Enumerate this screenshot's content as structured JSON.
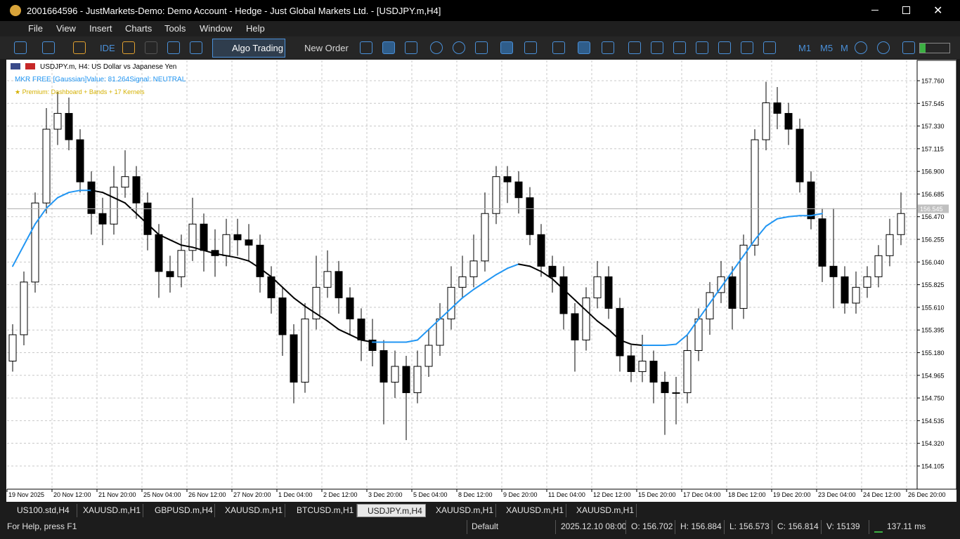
{
  "window": {
    "title": "2001664596 - JustMarkets-Demo: Demo Account - Hedge - Just Global Markets Ltd. - [USDJPY.m,H4]"
  },
  "menu": [
    "File",
    "View",
    "Insert",
    "Charts",
    "Tools",
    "Window",
    "Help"
  ],
  "toolbar": {
    "ide": "IDE",
    "algo_trading": "Algo Trading",
    "new_order": "New Order",
    "timeframes": [
      "M1",
      "M5",
      "M"
    ]
  },
  "chart_data": {
    "type": "candlestick",
    "symbol_label": "USDJPY.m, H4:  US Dollar vs Japanese Yen",
    "indicator_label": "MKR FREE [Gaussian]Value: 81.264Signal: NEUTRAL",
    "premium_label": "★ Premium: Dashboard + Bands + 17 Kernels",
    "x_labels": [
      "19 Nov 2025",
      "20 Nov 12:00",
      "21 Nov 20:00",
      "25 Nov 04:00",
      "26 Nov 12:00",
      "27 Nov 20:00",
      "1 Dec 04:00",
      "2 Dec 12:00",
      "3 Dec 20:00",
      "5 Dec 04:00",
      "8 Dec 12:00",
      "9 Dec 20:00",
      "11 Dec 04:00",
      "12 Dec 12:00",
      "15 Dec 20:00",
      "17 Dec 04:00",
      "18 Dec 12:00",
      "19 Dec 20:00",
      "23 Dec 04:00",
      "24 Dec 12:00",
      "26 Dec 20:00"
    ],
    "candles": [
      [
        155.1,
        155.45,
        155.0,
        155.35
      ],
      [
        155.35,
        155.95,
        155.25,
        155.85
      ],
      [
        155.85,
        156.7,
        155.75,
        156.6
      ],
      [
        156.6,
        157.5,
        156.5,
        157.3
      ],
      [
        157.3,
        157.65,
        157.15,
        157.45
      ],
      [
        157.45,
        157.6,
        157.1,
        157.2
      ],
      [
        157.2,
        157.3,
        156.7,
        156.8
      ],
      [
        156.8,
        156.9,
        156.3,
        156.5
      ],
      [
        156.5,
        156.65,
        156.2,
        156.4
      ],
      [
        156.4,
        156.95,
        156.3,
        156.75
      ],
      [
        156.75,
        157.1,
        156.65,
        156.85
      ],
      [
        156.85,
        156.95,
        156.45,
        156.6
      ],
      [
        156.6,
        156.7,
        156.15,
        156.3
      ],
      [
        156.3,
        156.4,
        155.7,
        155.95
      ],
      [
        155.95,
        156.1,
        155.75,
        155.9
      ],
      [
        155.9,
        156.3,
        155.8,
        156.15
      ],
      [
        156.15,
        156.65,
        156.05,
        156.4
      ],
      [
        156.4,
        156.5,
        155.95,
        156.15
      ],
      [
        156.15,
        156.35,
        155.9,
        156.1
      ],
      [
        156.1,
        156.45,
        156.0,
        156.3
      ],
      [
        156.3,
        156.45,
        156.1,
        156.25
      ],
      [
        156.25,
        156.4,
        156.05,
        156.2
      ],
      [
        156.2,
        156.3,
        155.75,
        155.9
      ],
      [
        155.9,
        156.0,
        155.55,
        155.7
      ],
      [
        155.7,
        155.8,
        155.15,
        155.35
      ],
      [
        155.35,
        155.45,
        154.7,
        154.9
      ],
      [
        154.9,
        155.65,
        154.8,
        155.5
      ],
      [
        155.5,
        156.1,
        155.4,
        155.8
      ],
      [
        155.8,
        156.15,
        155.7,
        155.95
      ],
      [
        155.95,
        156.05,
        155.55,
        155.7
      ],
      [
        155.7,
        155.8,
        155.35,
        155.5
      ],
      [
        155.5,
        155.6,
        155.1,
        155.3
      ],
      [
        155.3,
        155.5,
        155.05,
        155.2
      ],
      [
        155.2,
        155.3,
        154.5,
        154.9
      ],
      [
        154.9,
        155.2,
        154.75,
        155.05
      ],
      [
        155.05,
        155.15,
        154.35,
        154.8
      ],
      [
        154.8,
        155.2,
        154.7,
        155.05
      ],
      [
        155.05,
        155.4,
        154.95,
        155.25
      ],
      [
        155.25,
        155.65,
        155.15,
        155.5
      ],
      [
        155.5,
        156.0,
        155.4,
        155.8
      ],
      [
        155.8,
        156.1,
        155.7,
        155.9
      ],
      [
        155.9,
        156.3,
        155.8,
        156.05
      ],
      [
        156.05,
        156.7,
        155.95,
        156.5
      ],
      [
        156.5,
        156.95,
        156.4,
        156.85
      ],
      [
        156.85,
        156.95,
        156.6,
        156.8
      ],
      [
        156.8,
        156.9,
        156.5,
        156.65
      ],
      [
        156.65,
        156.75,
        156.2,
        156.3
      ],
      [
        156.3,
        156.4,
        155.9,
        156.0
      ],
      [
        156.0,
        156.1,
        155.75,
        155.9
      ],
      [
        155.9,
        156.0,
        155.4,
        155.55
      ],
      [
        155.55,
        155.65,
        155.0,
        155.3
      ],
      [
        155.3,
        155.8,
        155.2,
        155.7
      ],
      [
        155.7,
        156.05,
        155.6,
        155.9
      ],
      [
        155.9,
        156.0,
        155.5,
        155.6
      ],
      [
        155.6,
        155.7,
        155.0,
        155.15
      ],
      [
        155.15,
        155.25,
        154.9,
        155.0
      ],
      [
        155.0,
        155.35,
        154.9,
        155.1
      ],
      [
        155.1,
        155.2,
        154.7,
        154.9
      ],
      [
        154.9,
        155.0,
        154.4,
        154.8
      ],
      [
        154.8,
        154.95,
        154.5,
        154.8
      ],
      [
        154.8,
        155.35,
        154.7,
        155.2
      ],
      [
        155.2,
        155.6,
        155.1,
        155.5
      ],
      [
        155.5,
        155.85,
        155.35,
        155.75
      ],
      [
        155.75,
        156.05,
        155.65,
        155.9
      ],
      [
        155.9,
        156.0,
        155.4,
        155.6
      ],
      [
        155.6,
        156.3,
        155.5,
        156.2
      ],
      [
        156.2,
        157.3,
        156.1,
        157.2
      ],
      [
        157.2,
        157.75,
        157.1,
        157.55
      ],
      [
        157.55,
        157.7,
        157.3,
        157.45
      ],
      [
        157.45,
        157.55,
        157.15,
        157.3
      ],
      [
        157.3,
        157.4,
        156.7,
        156.8
      ],
      [
        156.8,
        156.9,
        156.35,
        156.45
      ],
      [
        156.45,
        156.55,
        155.85,
        156.0
      ],
      [
        156.0,
        156.55,
        155.6,
        155.9
      ],
      [
        155.9,
        156.0,
        155.55,
        155.65
      ],
      [
        155.65,
        155.95,
        155.55,
        155.8
      ],
      [
        155.8,
        156.0,
        155.7,
        155.9
      ],
      [
        155.9,
        156.2,
        155.8,
        156.1
      ],
      [
        156.1,
        156.45,
        156.0,
        156.3
      ],
      [
        156.3,
        156.7,
        156.2,
        156.5
      ]
    ],
    "up_color": "#ffffff",
    "down_color": "#000000",
    "ma": {
      "values": [
        156.0,
        156.2,
        156.4,
        156.55,
        156.65,
        156.7,
        156.72,
        156.72,
        156.7,
        156.65,
        156.6,
        156.5,
        156.4,
        156.3,
        156.25,
        156.2,
        156.18,
        156.15,
        156.12,
        156.1,
        156.08,
        156.05,
        155.98,
        155.9,
        155.8,
        155.7,
        155.62,
        155.55,
        155.48,
        155.4,
        155.35,
        155.3,
        155.28,
        155.28,
        155.28,
        155.28,
        155.3,
        155.4,
        155.5,
        155.6,
        155.7,
        155.78,
        155.85,
        155.92,
        155.98,
        156.02,
        156.0,
        155.95,
        155.88,
        155.78,
        155.68,
        155.58,
        155.48,
        155.4,
        155.3,
        155.26,
        155.25,
        155.25,
        155.25,
        155.26,
        155.35,
        155.5,
        155.65,
        155.8,
        155.95,
        156.1,
        156.25,
        156.38,
        156.45,
        156.47,
        156.48,
        156.48,
        156.5,
        null,
        null,
        null,
        null,
        null,
        null,
        null
      ],
      "rising_color": "#2196f3",
      "falling_color": "#000000"
    },
    "ylim": [
      153.885,
      157.953
    ],
    "yticks": [
      154.105,
      {
        "value": 154.32,
        "label": "154.320"
      },
      154.535,
      {
        "value": 154.75,
        "label": "154.750"
      },
      154.965,
      {
        "value": 155.18,
        "label": "155.180"
      },
      155.395,
      {
        "value": 155.61,
        "label": "155.610"
      },
      155.825,
      {
        "value": 156.04,
        "label": "156.040"
      },
      156.255,
      {
        "value": 156.47,
        "label": "156.470"
      },
      156.685,
      {
        "value": 156.9,
        "label": "156.900"
      },
      157.115,
      {
        "value": 157.33,
        "label": "157.330"
      },
      157.545,
      {
        "value": 157.76,
        "label": "157.760"
      }
    ],
    "current_price": 156.545,
    "grid": true
  },
  "tabs": [
    "US100.std,H4",
    "XAUUSD.m,H1",
    "GBPUSD.m,H4",
    "XAUUSD.m,H1",
    "BTCUSD.m,H1",
    "USDJPY.m,H4",
    "XAUUSD.m,H1",
    "XAUUSD.m,H1",
    "XAUUSD.m,H1"
  ],
  "active_tab": 5,
  "status": {
    "help": "For Help, press F1",
    "profile": "Default",
    "time": "2025.12.10 08:00",
    "open": "O: 156.702",
    "high": "H: 156.884",
    "low": "L: 156.573",
    "close": "C: 156.814",
    "volume": "V: 15139",
    "ping": "137.11 ms"
  }
}
